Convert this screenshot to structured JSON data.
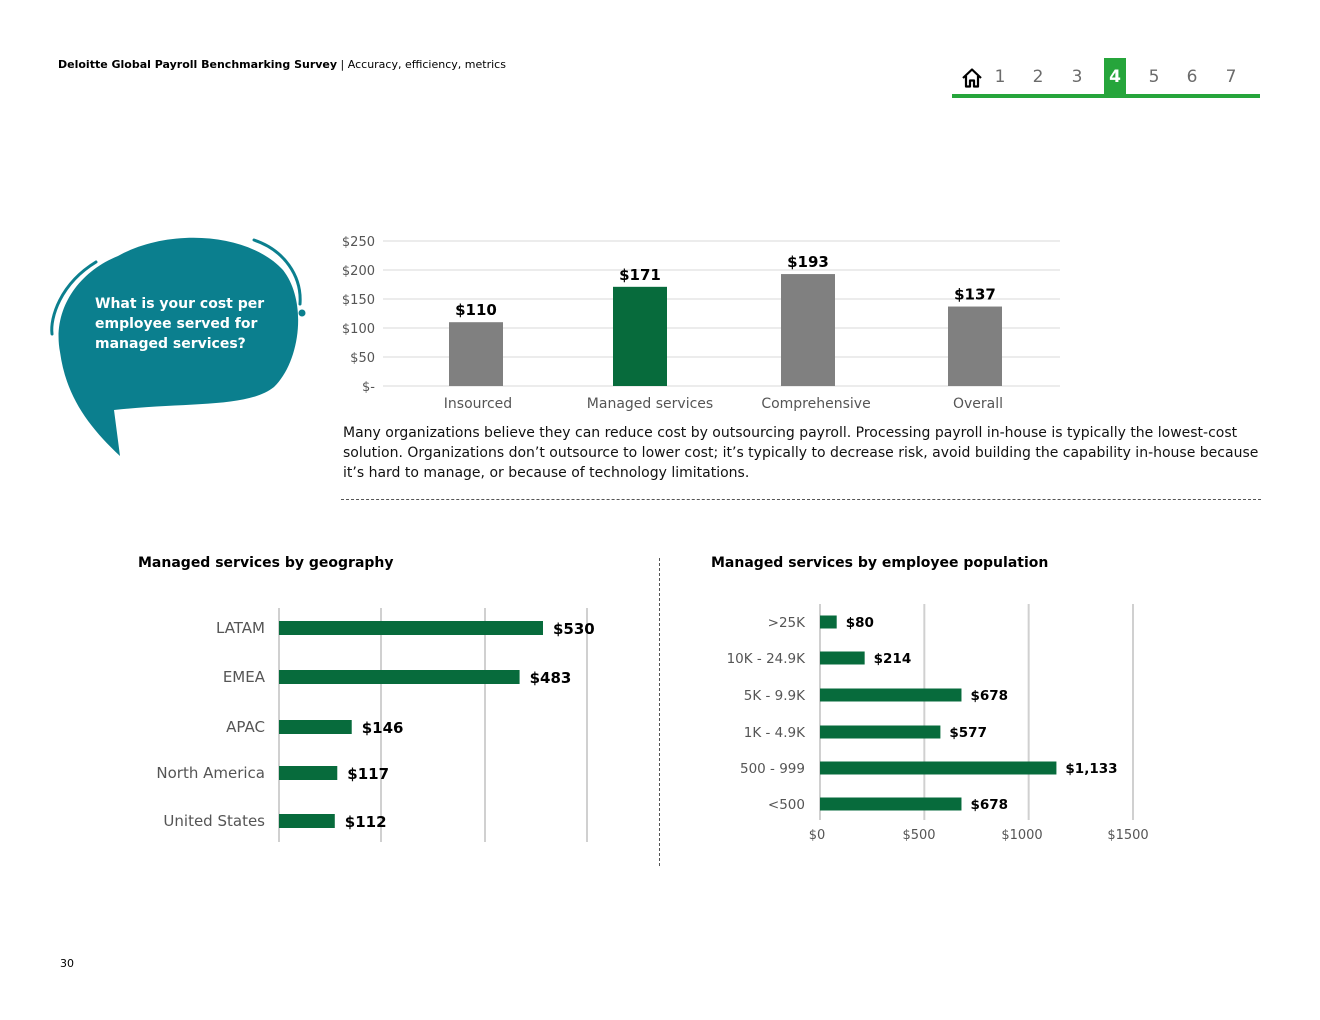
{
  "header": {
    "title_bold": "Deloitte Global Payroll Benchmarking Survey",
    "title_rest": " | Accuracy, efficiency, metrics"
  },
  "nav": {
    "home_icon": "home-icon",
    "pages": [
      "1",
      "2",
      "3",
      "4",
      "5",
      "6",
      "7"
    ],
    "active": "4",
    "accent": "#26a53b"
  },
  "question": {
    "text": "What is your cost per employee served for managed services?",
    "color": "#0b7f8e"
  },
  "description": "Many organizations believe they can reduce cost by outsourcing payroll. Processing payroll in-house is typically the lowest-cost solution. Organizations don’t outsource to lower cost; it’s typically to decrease risk, avoid building the capability in-house because it’s hard to manage, or because of technology limitations.",
  "geo_title": "Managed services by geography",
  "pop_title": "Managed services by employee population",
  "page_number": "30",
  "chart_data": [
    {
      "type": "bar",
      "categories": [
        "Insourced",
        "Managed services",
        "Comprehensive",
        "Overall"
      ],
      "values": [
        110,
        171,
        193,
        137
      ],
      "value_labels": [
        "$110",
        "$171",
        "$193",
        "$137"
      ],
      "ylim": [
        0,
        250
      ],
      "yticks": [
        0,
        50,
        100,
        150,
        200,
        250
      ],
      "ytick_labels": [
        "$-",
        "$50",
        "$100",
        "$150",
        "$200",
        "$250"
      ],
      "colors": [
        "#808080",
        "#076b3c",
        "#808080",
        "#808080"
      ],
      "grid": true
    },
    {
      "type": "bar",
      "orientation": "horizontal",
      "title": "Managed services by geography",
      "categories": [
        "LATAM",
        "EMEA",
        "APAC",
        "North America",
        "United States"
      ],
      "values": [
        530,
        483,
        146,
        117,
        112
      ],
      "value_labels": [
        "$530",
        "$483",
        "$146",
        "$117",
        "$112"
      ],
      "xlim": [
        0,
        600
      ],
      "grid": true,
      "color": "#076b3c"
    },
    {
      "type": "bar",
      "orientation": "horizontal",
      "title": "Managed services by employee population",
      "categories": [
        ">25K",
        "10K - 24.9K",
        "5K - 9.9K",
        "1K - 4.9K",
        "500 - 999",
        "<500"
      ],
      "values": [
        80,
        214,
        678,
        577,
        1133,
        678
      ],
      "value_labels": [
        "$80",
        "$214",
        "$678",
        "$577",
        "$1,133",
        "$678"
      ],
      "xlim": [
        0,
        1500
      ],
      "xticks": [
        0,
        500,
        1000,
        1500
      ],
      "xtick_labels": [
        "$0",
        "$500",
        "$1000",
        "$1500"
      ],
      "grid": true,
      "color": "#076b3c"
    }
  ]
}
